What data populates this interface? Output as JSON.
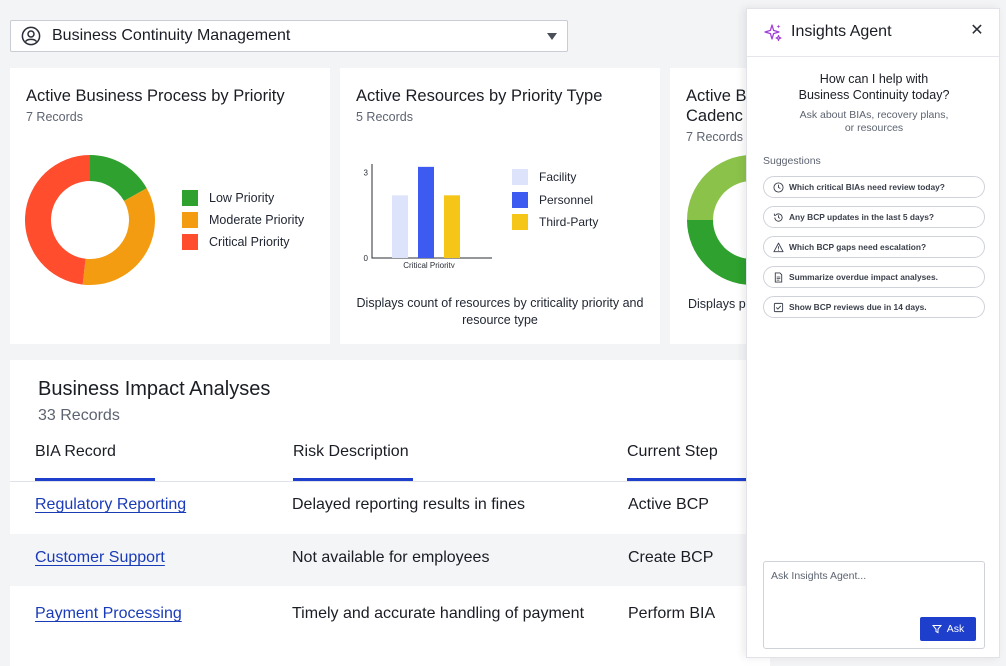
{
  "selector": {
    "value": "Business Continuity Management"
  },
  "cards": [
    {
      "title": "Active Business Process by Priority",
      "records": "7 Records",
      "legend": [
        {
          "label": "Low Priority",
          "color": "#2ea12e"
        },
        {
          "label": "Moderate Priority",
          "color": "#f39c12"
        },
        {
          "label": "Critical Priority",
          "color": "#ff4d2e"
        }
      ]
    },
    {
      "title": "Active Resources by Priority Type",
      "records": "5 Records",
      "legend": [
        {
          "label": "Facility",
          "color": "#dde3fb"
        },
        {
          "label": "Personnel",
          "color": "#3d5af1"
        },
        {
          "label": "Third-Party",
          "color": "#f5c518"
        }
      ],
      "description": "Displays count of resources by criticality priority and resource type"
    },
    {
      "title_line1": "Active B",
      "title_line2": "Cadenc",
      "records": "7 Records",
      "description": "Displays p"
    }
  ],
  "chart_data": [
    {
      "type": "pie",
      "title": "Active Business Process by Priority",
      "categories": [
        "Low Priority",
        "Moderate Priority",
        "Critical Priority"
      ],
      "values": [
        1.4,
        2.9,
        4.0
      ],
      "colors": [
        "#2ea12e",
        "#f39c12",
        "#ff4d2e"
      ]
    },
    {
      "type": "bar",
      "title": "Active Resources by Priority Type",
      "categories": [
        "Critical Priority"
      ],
      "series": [
        {
          "name": "Facility",
          "values": [
            2.2
          ],
          "color": "#dde3fb"
        },
        {
          "name": "Personnel",
          "values": [
            3.2
          ],
          "color": "#3d5af1"
        },
        {
          "name": "Third-Party",
          "values": [
            2.2
          ],
          "color": "#f5c518"
        }
      ],
      "yticks": [
        "0",
        "3"
      ],
      "ylim": [
        0,
        3.3
      ]
    },
    {
      "type": "pie",
      "values": [
        1,
        3
      ],
      "colors": [
        "#8bc34a",
        "#2ea12e"
      ]
    }
  ],
  "table": {
    "title": "Business Impact Analyses",
    "records": "33 Records",
    "columns": [
      "BIA Record",
      "Risk Description",
      "Current Step"
    ],
    "rows": [
      {
        "record": "Regulatory Reporting",
        "risk": "Delayed reporting results in fines",
        "step": "Active BCP"
      },
      {
        "record": "Customer Support",
        "risk": "Not available for employees",
        "step": "Create BCP"
      },
      {
        "record": "Payment Processing",
        "risk": "Timely and accurate handling of payment",
        "step": "Perform BIA"
      }
    ]
  },
  "agent": {
    "title": "Insights Agent",
    "greeting_line1": "How can I help with",
    "greeting_line2": "Business Continuity today?",
    "hint_line1": "Ask about BIAs, recovery plans,",
    "hint_line2": "or resources",
    "suggestions_label": "Suggestions",
    "suggestions": [
      {
        "icon": "clock-icon",
        "text": "Which critical BIAs need review today?"
      },
      {
        "icon": "history-icon",
        "text": "Any BCP updates in the last 5 days?"
      },
      {
        "icon": "warning-icon",
        "text": "Which BCP gaps need escalation?"
      },
      {
        "icon": "document-icon",
        "text": "Summarize overdue impact analyses."
      },
      {
        "icon": "checkbox-icon",
        "text": "Show BCP reviews due in 14 days."
      }
    ],
    "input_placeholder": "Ask Insights Agent...",
    "ask_label": "Ask",
    "accent": "#1d3fcc"
  }
}
